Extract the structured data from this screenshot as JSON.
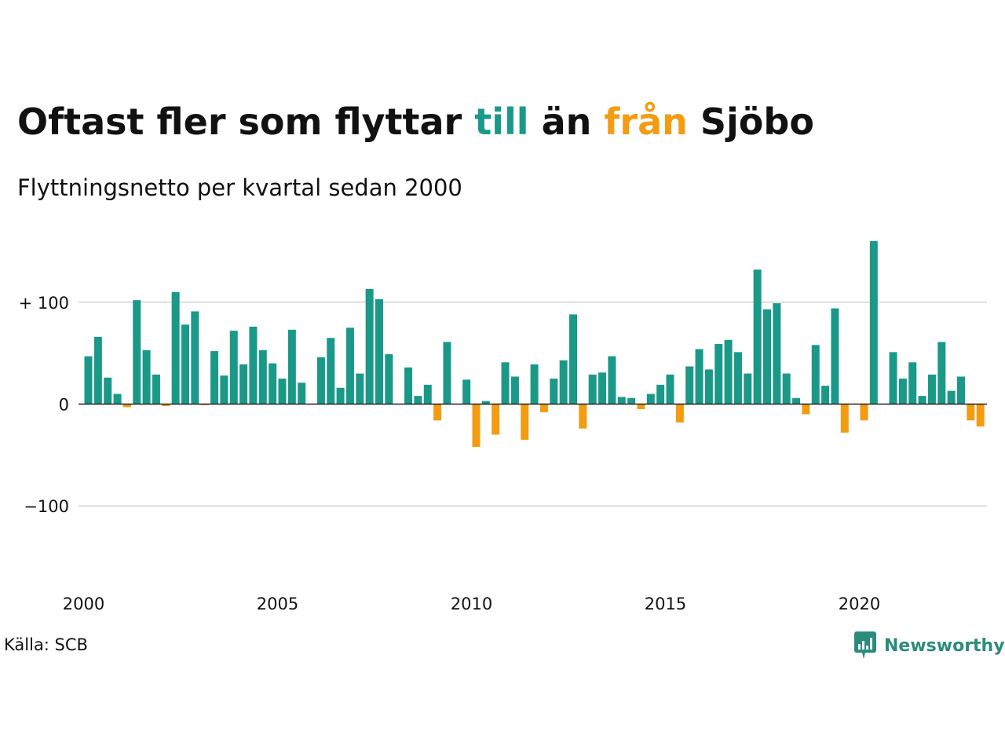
{
  "title": {
    "part1": "Oftast fler som flyttar ",
    "highlight_in": "till",
    "part2": " än ",
    "highlight_out": "från",
    "part3": " Sjöbo"
  },
  "subtitle": "Flyttningsnetto per kvartal sedan 2000",
  "source": "Källa: SCB",
  "brand": {
    "name": "Newsworthy",
    "icon": "newsworthy-logo-icon",
    "color": "#2c8c7c"
  },
  "colors": {
    "positive": "#1a9988",
    "negative": "#f39c12",
    "grid": "#dddddd",
    "zero_line": "#222222"
  },
  "chart_data": {
    "type": "bar",
    "title": "Oftast fler som flyttar till än från Sjöbo",
    "subtitle": "Flyttningsnetto per kvartal sedan 2000",
    "xlabel": "",
    "ylabel": "",
    "ylim": [
      -190,
      180
    ],
    "y_ticks": [
      {
        "value": 100,
        "label": "+ 100"
      },
      {
        "value": 0,
        "label": "0"
      },
      {
        "value": -100,
        "label": "−100"
      }
    ],
    "x_ticks": [
      {
        "value": 2000,
        "label": "2000"
      },
      {
        "value": 2005,
        "label": "2005"
      },
      {
        "value": 2010,
        "label": "2010"
      },
      {
        "value": 2015,
        "label": "2015"
      },
      {
        "value": 2020,
        "label": "2020"
      }
    ],
    "x_start": 2000,
    "periods_per_year": 4,
    "grid": true,
    "legend": "none",
    "values": [
      47,
      66,
      26,
      10,
      -3,
      102,
      53,
      29,
      -2,
      110,
      78,
      91,
      -1,
      52,
      28,
      72,
      39,
      76,
      53,
      40,
      25,
      73,
      21,
      0,
      46,
      65,
      16,
      75,
      30,
      113,
      103,
      49,
      0,
      36,
      8,
      19,
      -16,
      61,
      0,
      24,
      -42,
      3,
      -30,
      41,
      27,
      -35,
      39,
      -8,
      25,
      43,
      88,
      -24,
      29,
      31,
      47,
      7,
      6,
      -5,
      10,
      19,
      29,
      -18,
      37,
      54,
      34,
      59,
      63,
      51,
      30,
      132,
      93,
      99,
      30,
      6,
      -10,
      58,
      18,
      94,
      -28,
      0,
      -16,
      160,
      0,
      51,
      25,
      41,
      8,
      29,
      61,
      13,
      27,
      -16,
      -22
    ]
  }
}
